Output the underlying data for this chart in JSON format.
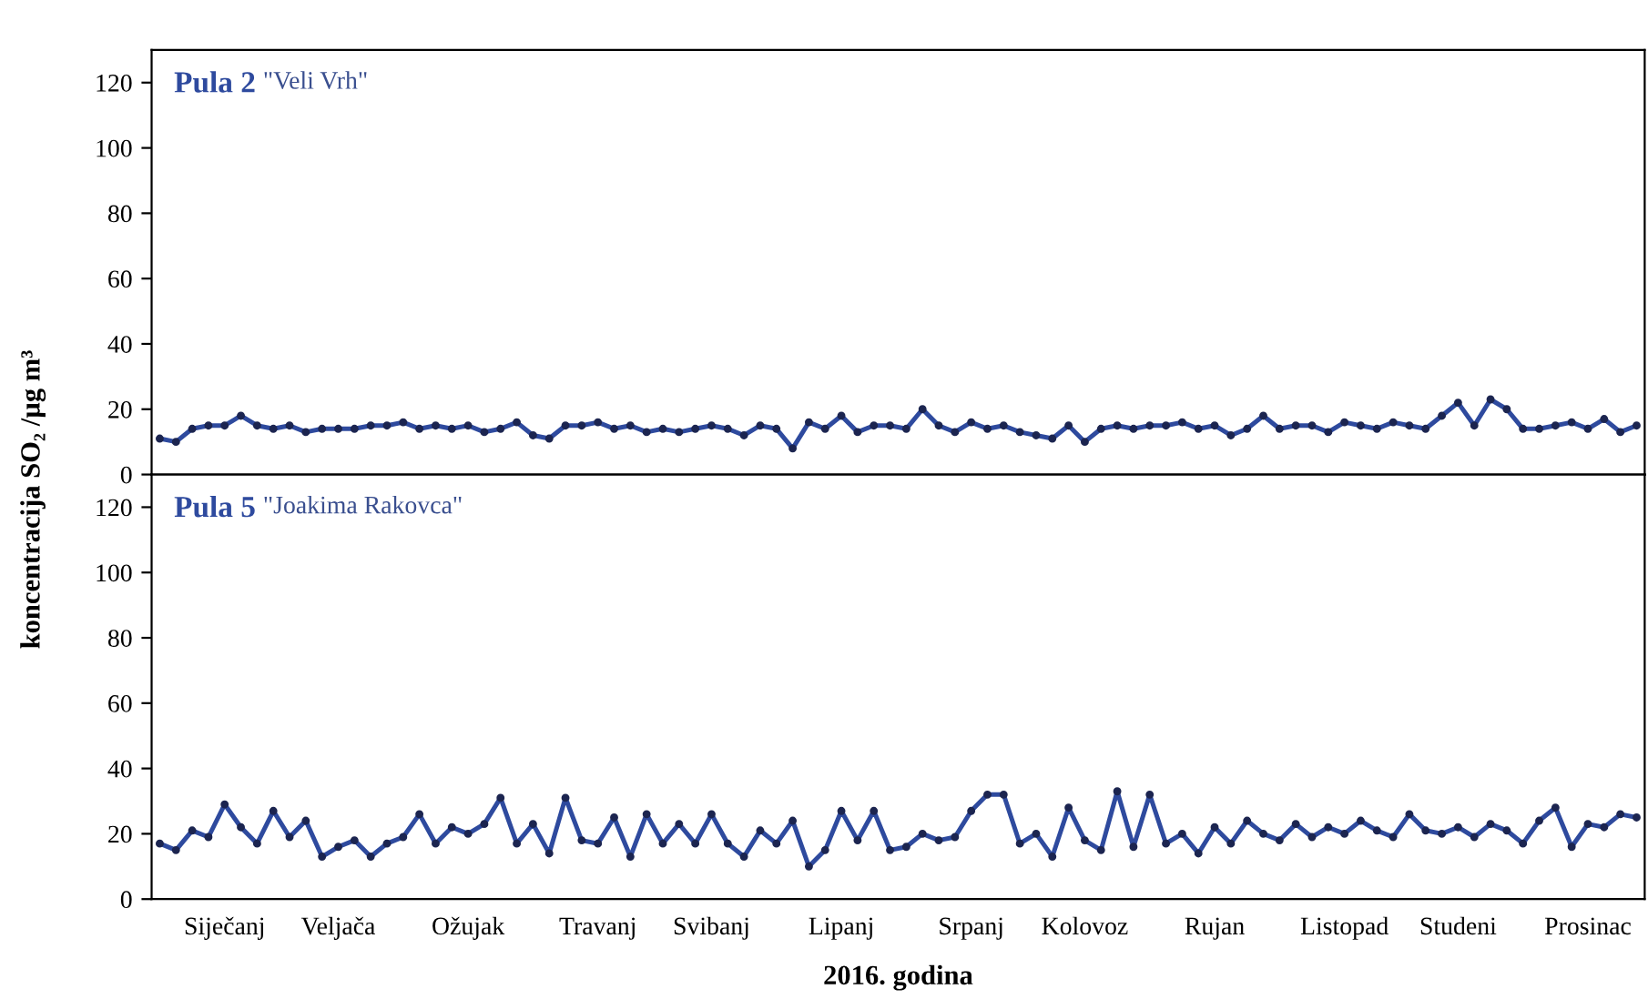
{
  "chart_data": [
    {
      "type": "line",
      "title": "Pula 2",
      "subtitle": "\"Veli Vrh\"",
      "ylabel": "koncentracija SO₂ /µg m³",
      "marker": "circle",
      "line_style": "solid",
      "tick_labels": "y",
      "categories": [
        null,
        null,
        null,
        null,
        null,
        null,
        null,
        null,
        null,
        null,
        null,
        null,
        null,
        null,
        null,
        null,
        null,
        null,
        null,
        null,
        null,
        null,
        null,
        null,
        null,
        null,
        null,
        null,
        null,
        null,
        null,
        null,
        null,
        null,
        null,
        null,
        null,
        null,
        null,
        null,
        null,
        null,
        null,
        null,
        null,
        null,
        null,
        null,
        null,
        null,
        null,
        null,
        null,
        null,
        null,
        null,
        null,
        null,
        null,
        null,
        null,
        null,
        null,
        null,
        null,
        null,
        null,
        null,
        null,
        null,
        null,
        null,
        null,
        null,
        null,
        null,
        null,
        null,
        null,
        null,
        null,
        null,
        null,
        null,
        null,
        null,
        null,
        null,
        null,
        null,
        null,
        null
      ],
      "series": [
        {
          "color": "#2e4a9e",
          "values": [
            11,
            10,
            14,
            15,
            15,
            18,
            15,
            14,
            15,
            13,
            14,
            14,
            14,
            15,
            15,
            16,
            14,
            15,
            14,
            15,
            13,
            14,
            16,
            12,
            11,
            15,
            15,
            16,
            14,
            15,
            13,
            14,
            13,
            14,
            15,
            14,
            12,
            15,
            14,
            8,
            16,
            14,
            18,
            13,
            15,
            15,
            14,
            20,
            15,
            13,
            16,
            14,
            15,
            13,
            12,
            11,
            15,
            10,
            14,
            15,
            14,
            15,
            15,
            16,
            14,
            15,
            12,
            14,
            18,
            14,
            15,
            15,
            13,
            16,
            15,
            14,
            16,
            15,
            14,
            18,
            22,
            15,
            23,
            20,
            14,
            14,
            15,
            16,
            14,
            17,
            13,
            15
          ]
        }
      ],
      "ylim": [
        0,
        130
      ],
      "yticks": [
        0,
        20,
        40,
        60,
        80,
        100,
        120
      ]
    },
    {
      "type": "line",
      "title": "Pula 5",
      "subtitle": "\"Joakima Rakovca\"",
      "xlabel": "2016. godina",
      "marker": "circle",
      "line_style": "solid",
      "categories": [
        null,
        null,
        null,
        null,
        "Siječanj",
        null,
        null,
        null,
        null,
        null,
        null,
        "Veljača",
        null,
        null,
        null,
        null,
        null,
        null,
        null,
        "Ožujak",
        null,
        null,
        null,
        null,
        null,
        null,
        null,
        "Travanj",
        null,
        null,
        null,
        null,
        null,
        null,
        "Svibanj",
        null,
        null,
        null,
        null,
        null,
        null,
        null,
        "Lipanj",
        null,
        null,
        null,
        null,
        null,
        null,
        null,
        "Srpanj",
        null,
        null,
        null,
        null,
        null,
        null,
        "Kolovoz",
        null,
        null,
        null,
        null,
        null,
        null,
        null,
        "Rujan",
        null,
        null,
        null,
        null,
        null,
        null,
        null,
        "Listopad",
        null,
        null,
        null,
        null,
        null,
        null,
        "Studeni",
        null,
        null,
        null,
        null,
        null,
        null,
        null,
        "Prosinac",
        null,
        null,
        null
      ],
      "series": [
        {
          "color": "#2e4a9e",
          "values": [
            17,
            15,
            21,
            19,
            29,
            22,
            17,
            27,
            19,
            24,
            13,
            16,
            18,
            13,
            17,
            19,
            26,
            17,
            22,
            20,
            23,
            31,
            17,
            23,
            14,
            31,
            18,
            17,
            25,
            13,
            26,
            17,
            23,
            17,
            26,
            17,
            13,
            21,
            17,
            24,
            10,
            15,
            27,
            18,
            27,
            15,
            16,
            20,
            18,
            19,
            27,
            32,
            32,
            17,
            20,
            13,
            28,
            18,
            15,
            33,
            16,
            32,
            17,
            20,
            14,
            22,
            17,
            24,
            20,
            18,
            23,
            19,
            22,
            20,
            24,
            21,
            19,
            26,
            21,
            20,
            22,
            19,
            23,
            21,
            17,
            24,
            28,
            16,
            23,
            22,
            26,
            25
          ]
        }
      ],
      "ylim": [
        0,
        130
      ],
      "yticks": [
        0,
        20,
        40,
        60,
        80,
        100,
        120
      ]
    }
  ]
}
